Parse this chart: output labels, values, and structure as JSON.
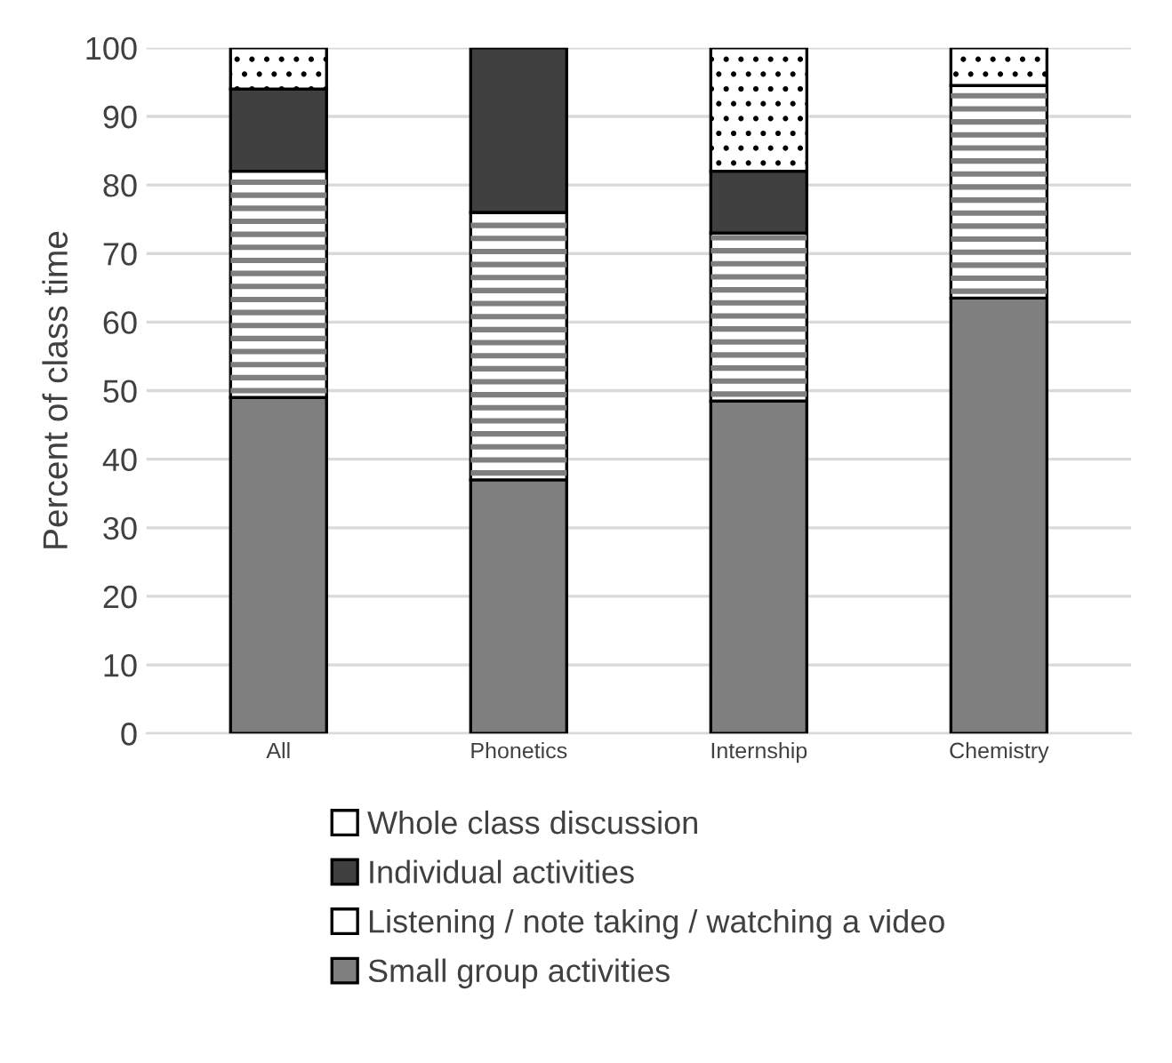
{
  "chart_data": {
    "type": "bar",
    "stacked": true,
    "ylabel": "Percent of class time",
    "categories": [
      "All",
      "Phonetics",
      "Internship",
      "Chemistry"
    ],
    "series": [
      {
        "name": "Small group activities",
        "color": "#7f7f7f",
        "values": [
          49,
          37,
          48.5,
          63.5
        ]
      },
      {
        "name": "Listening / note taking / watching a video",
        "color": "#ffffff",
        "values": [
          33,
          39,
          24.5,
          31
        ]
      },
      {
        "name": "Individual activities",
        "color": "#404040",
        "values": [
          12,
          24,
          9,
          0
        ]
      },
      {
        "name": "Whole class discussion",
        "color": "#ffffff",
        "values": [
          6,
          0,
          18,
          5.5
        ]
      }
    ],
    "ylim": [
      0,
      100
    ],
    "yticks": [
      0,
      10,
      20,
      30,
      40,
      50,
      60,
      70,
      80,
      90,
      100
    ],
    "grid": "y",
    "legend": "bottom"
  }
}
